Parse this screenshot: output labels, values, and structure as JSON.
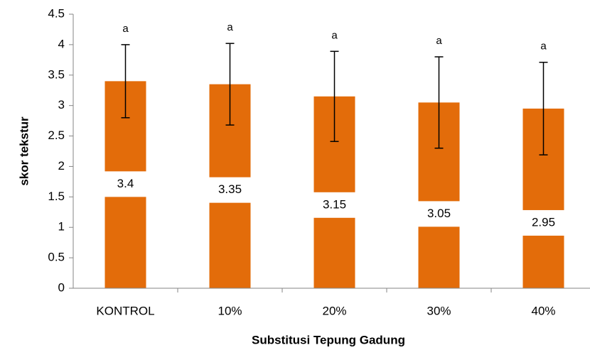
{
  "chart_data": {
    "type": "bar",
    "x_label": "Substitusi Tepung Gadung",
    "y_label": "skor tekstur",
    "categories": [
      "KONTROL",
      "10%",
      "20%",
      "30%",
      "40%"
    ],
    "values": [
      3.4,
      3.35,
      3.15,
      3.05,
      2.95
    ],
    "errors": [
      0.6,
      0.67,
      0.74,
      0.75,
      0.76
    ],
    "annotations": [
      "a",
      "a",
      "a",
      "a",
      "a"
    ],
    "color": "#e36c0a",
    "ylim": [
      0,
      4.5
    ],
    "yticks": [
      0,
      0.5,
      1,
      1.5,
      2,
      2.5,
      3,
      3.5,
      4,
      4.5
    ],
    "grid": false
  }
}
